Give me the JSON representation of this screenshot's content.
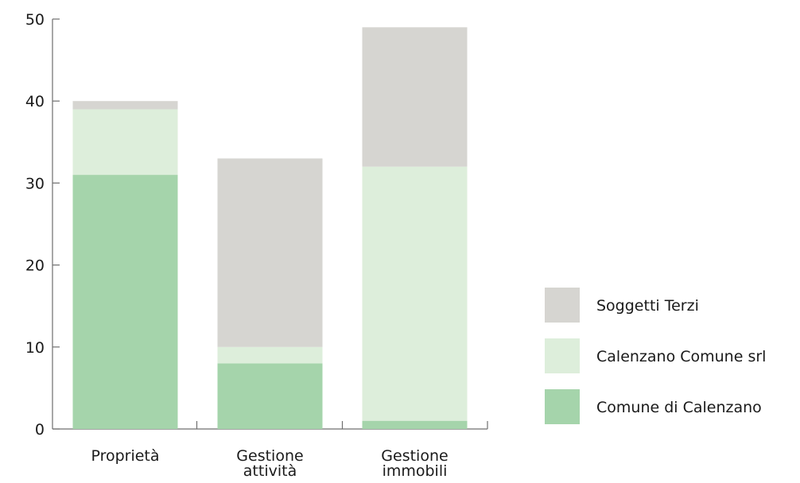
{
  "chart_data": {
    "type": "bar",
    "stacked": true,
    "categories": [
      [
        "Proprietà"
      ],
      [
        "Gestione",
        "attività"
      ],
      [
        "Gestione",
        "immobili"
      ]
    ],
    "series": [
      {
        "name": "Comune di Calenzano",
        "color": "#a5d4ab",
        "values": [
          31,
          8,
          1
        ]
      },
      {
        "name": "Calenzano Comune srl",
        "color": "#ddeedb",
        "values": [
          8,
          2,
          31
        ]
      },
      {
        "name": "Soggetti Terzi",
        "color": "#d6d5d1",
        "values": [
          1,
          23,
          17
        ]
      }
    ],
    "ylim": [
      0,
      50
    ],
    "yticks": [
      0,
      10,
      20,
      30,
      40,
      50
    ],
    "grid": false,
    "legend_position": "right"
  }
}
